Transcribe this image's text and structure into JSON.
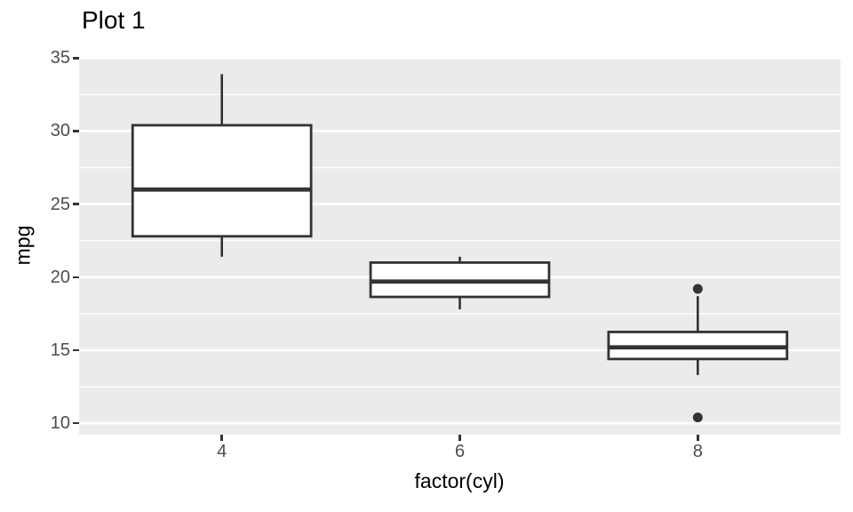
{
  "chart_data": {
    "type": "boxplot",
    "title": "Plot 1",
    "xlabel": "factor(cyl)",
    "ylabel": "mpg",
    "categories": [
      "4",
      "6",
      "8"
    ],
    "y_ticks": [
      10,
      15,
      20,
      25,
      30,
      35
    ],
    "y_minor_ticks": [
      12.5,
      17.5,
      22.5,
      27.5,
      32.5
    ],
    "ylim": [
      9.22,
      35.08
    ],
    "grid": "on",
    "legend": "none",
    "series": [
      {
        "category": "4",
        "lower_whisker": 21.4,
        "q1": 22.8,
        "median": 26.0,
        "q3": 30.4,
        "upper_whisker": 33.9,
        "outliers": []
      },
      {
        "category": "6",
        "lower_whisker": 17.8,
        "q1": 18.65,
        "median": 19.7,
        "q3": 21.0,
        "upper_whisker": 21.4,
        "outliers": []
      },
      {
        "category": "8",
        "lower_whisker": 13.3,
        "q1": 14.4,
        "median": 15.2,
        "q3": 16.25,
        "upper_whisker": 18.7,
        "outliers": [
          19.2,
          10.4
        ]
      }
    ],
    "colors": {
      "panel_bg": "#EBEBEB",
      "grid_major": "#FFFFFF",
      "grid_minor": "#FFFFFF",
      "box_stroke": "#333333",
      "box_fill": "#FFFFFF",
      "outlier": "#333333",
      "axis_text": "#4D4D4D",
      "tick_mark": "#333333",
      "title_text": "#000000"
    }
  }
}
